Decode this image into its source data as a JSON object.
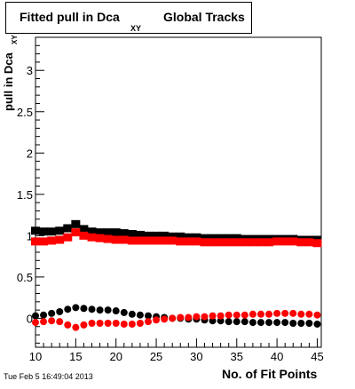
{
  "title": {
    "main": "Fitted pull in Dca",
    "sub": "XY",
    "tail": "Global Tracks"
  },
  "ylabel": {
    "main": "pull in Dca",
    "sub": "XY"
  },
  "xlabel": "No. of Fit Points",
  "datestamp": "Tue Feb  5 16:49:04 2013",
  "colors": {
    "black_series": "#000000",
    "red_series": "#ff0000",
    "axis": "#000000",
    "background": "#ffffff"
  },
  "chart_data": {
    "type": "scatter",
    "xlim": [
      10,
      45.5
    ],
    "ylim": [
      -0.35,
      3.4
    ],
    "x_ticks": [
      10,
      15,
      20,
      25,
      30,
      35,
      40,
      45
    ],
    "y_ticks": [
      0,
      0.5,
      1,
      1.5,
      2,
      2.5,
      3
    ],
    "y_tick_labels": [
      "0",
      "0.5",
      "1",
      "1.5",
      "2",
      "2.5",
      "3"
    ],
    "grid": false,
    "legend": "none",
    "x": [
      10,
      11,
      12,
      13,
      14,
      15,
      16,
      17,
      18,
      19,
      20,
      21,
      22,
      23,
      24,
      25,
      26,
      27,
      28,
      29,
      30,
      31,
      32,
      33,
      34,
      35,
      36,
      37,
      38,
      39,
      40,
      41,
      42,
      43,
      44,
      45
    ],
    "series": [
      {
        "color": "#000000",
        "marker": "square",
        "values": [
          1.06,
          1.05,
          1.05,
          1.06,
          1.09,
          1.14,
          1.08,
          1.05,
          1.04,
          1.04,
          1.04,
          1.03,
          1.02,
          1.01,
          1.0,
          1.0,
          1.0,
          0.99,
          0.99,
          0.98,
          0.98,
          0.97,
          0.97,
          0.97,
          0.97,
          0.97,
          0.96,
          0.96,
          0.96,
          0.96,
          0.96,
          0.96,
          0.96,
          0.95,
          0.95,
          0.95
        ]
      },
      {
        "color": "#ff0000",
        "marker": "square",
        "values": [
          0.93,
          0.93,
          0.94,
          0.95,
          0.98,
          1.04,
          1.0,
          0.98,
          0.97,
          0.96,
          0.95,
          0.95,
          0.94,
          0.94,
          0.94,
          0.94,
          0.94,
          0.94,
          0.93,
          0.93,
          0.93,
          0.92,
          0.92,
          0.92,
          0.92,
          0.92,
          0.92,
          0.92,
          0.92,
          0.92,
          0.93,
          0.93,
          0.93,
          0.92,
          0.92,
          0.91
        ]
      },
      {
        "color": "#000000",
        "marker": "circle",
        "values": [
          0.03,
          0.04,
          0.06,
          0.08,
          0.11,
          0.13,
          0.12,
          0.11,
          0.1,
          0.1,
          0.09,
          0.07,
          0.05,
          0.04,
          0.03,
          0.02,
          0.01,
          0.0,
          0.0,
          -0.01,
          -0.01,
          -0.02,
          -0.03,
          -0.03,
          -0.04,
          -0.04,
          -0.04,
          -0.05,
          -0.05,
          -0.05,
          -0.05,
          -0.05,
          -0.06,
          -0.06,
          -0.06,
          -0.07
        ]
      },
      {
        "color": "#ff0000",
        "marker": "circle",
        "values": [
          -0.05,
          -0.04,
          -0.03,
          -0.04,
          -0.08,
          -0.11,
          -0.08,
          -0.06,
          -0.06,
          -0.06,
          -0.06,
          -0.07,
          -0.07,
          -0.06,
          -0.04,
          -0.02,
          -0.01,
          0.0,
          0.01,
          0.01,
          0.02,
          0.02,
          0.03,
          0.03,
          0.04,
          0.04,
          0.04,
          0.05,
          0.05,
          0.05,
          0.06,
          0.06,
          0.06,
          0.05,
          0.05,
          0.04
        ]
      }
    ]
  }
}
